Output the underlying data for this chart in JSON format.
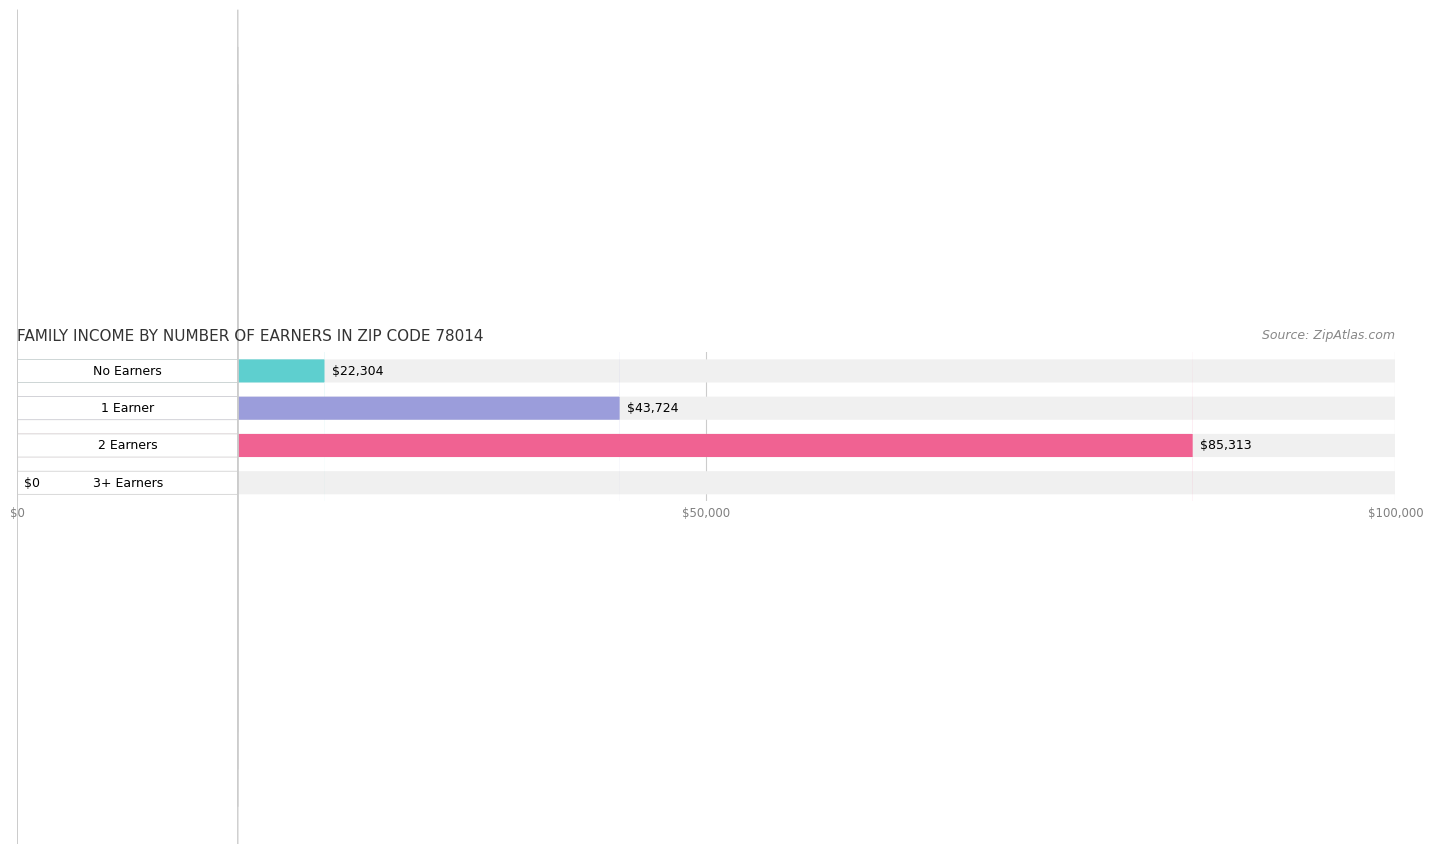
{
  "title": "FAMILY INCOME BY NUMBER OF EARNERS IN ZIP CODE 78014",
  "source": "Source: ZipAtlas.com",
  "categories": [
    "No Earners",
    "1 Earner",
    "2 Earners",
    "3+ Earners"
  ],
  "values": [
    22304,
    43724,
    85313,
    0
  ],
  "labels": [
    "$22,304",
    "$43,724",
    "$85,313",
    "$0"
  ],
  "bar_colors": [
    "#5ECFCF",
    "#9B9DDB",
    "#F06292",
    "#F5C992"
  ],
  "bar_bg_color": "#F0F0F0",
  "background_color": "#FFFFFF",
  "xlim": [
    0,
    100000
  ],
  "xticks": [
    0,
    50000,
    100000
  ],
  "xticklabels": [
    "$0",
    "$50,000",
    "$100,000"
  ],
  "title_fontsize": 11,
  "source_fontsize": 9,
  "label_fontsize": 9,
  "ylabel_fontsize": 9
}
